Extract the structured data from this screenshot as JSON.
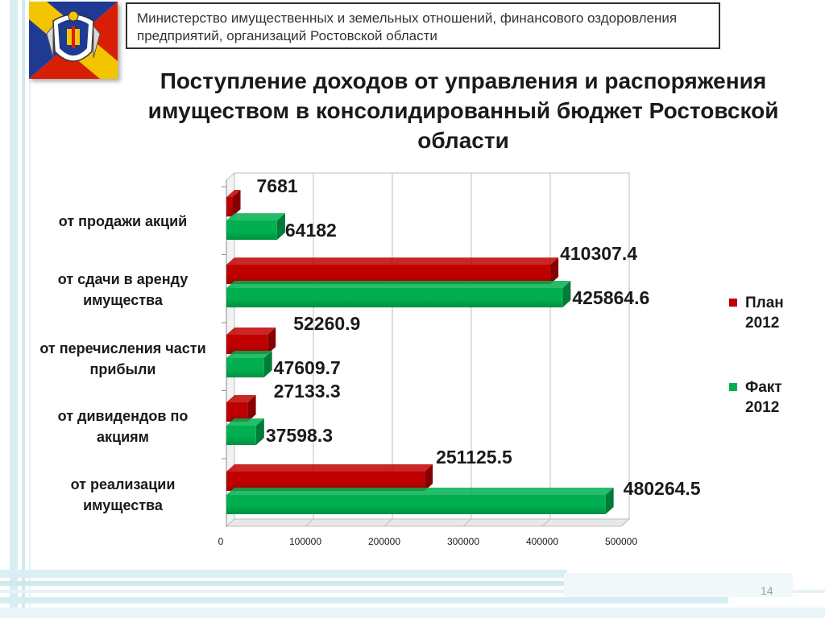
{
  "header": {
    "text": "Министерство имущественных и земельных отношений, финансового оздоровления предприятий, организаций Ростовской области"
  },
  "title": "Поступление доходов от управления и распоряжения имуществом в консолидированный бюджет Ростовской области",
  "legend": {
    "plan_label": "План 2012",
    "fact_label": "Факт 2012"
  },
  "page_number": "14",
  "colors": {
    "plan": "#c00000",
    "fact": "#00b050",
    "flag_blue": "#1f3a93",
    "flag_yellow": "#f2c500",
    "flag_red": "#d81e05"
  },
  "chart_data": {
    "type": "bar",
    "orientation": "horizontal",
    "categories": [
      "от продажи акций",
      "от сдачи в аренду имущества",
      "от перечисления части прибыли",
      "от дивидендов по акциям",
      "от реализации имущества"
    ],
    "series": [
      {
        "name": "План 2012",
        "values": [
          7681,
          410307.4,
          52260.9,
          27133.3,
          251125.5
        ],
        "labels": [
          "7681",
          "410307.4",
          "52260.9",
          "27133.3",
          "251125.5"
        ]
      },
      {
        "name": "Факт 2012",
        "values": [
          64182,
          425864.6,
          47609.7,
          37598.3,
          480264.5
        ],
        "labels": [
          "64182",
          "425864.6",
          "47609.7",
          "37598.3",
          "480264.5"
        ]
      }
    ],
    "xlim": [
      0,
      500000
    ],
    "xticks": [
      0,
      100000,
      200000,
      300000,
      400000,
      500000
    ],
    "xtick_labels": [
      "0",
      "100000",
      "200000",
      "300000",
      "400000",
      "500000"
    ],
    "grid": true,
    "legend_position": "right"
  }
}
